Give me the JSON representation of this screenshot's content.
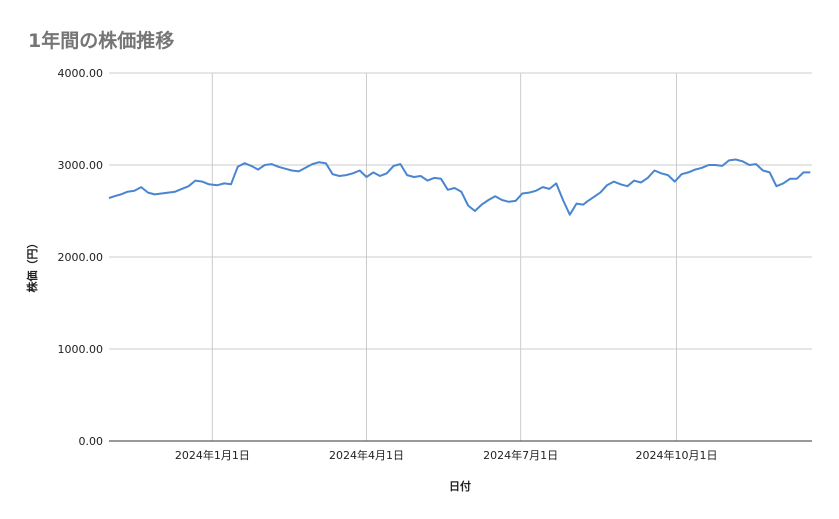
{
  "chart_data": {
    "type": "line",
    "title": "1年間の株価推移",
    "xlabel": "日付",
    "ylabel": "株価（円）",
    "ylim": [
      0,
      4000
    ],
    "yticks": [
      {
        "value": 0,
        "label": "0.00"
      },
      {
        "value": 1000,
        "label": "1000.00"
      },
      {
        "value": 2000,
        "label": "2000.00"
      },
      {
        "value": 3000,
        "label": "3000.00"
      },
      {
        "value": 4000,
        "label": "4000.00"
      }
    ],
    "xlim": [
      "2023-11-01",
      "2024-12-20"
    ],
    "xticks": [
      {
        "date": "2024-01-01",
        "label": "2024年1月1日"
      },
      {
        "date": "2024-04-01",
        "label": "2024年4月1日"
      },
      {
        "date": "2024-07-01",
        "label": "2024年7月1日"
      },
      {
        "date": "2024-10-01",
        "label": "2024年10月1日"
      }
    ],
    "grid": true,
    "legend": "none",
    "color": "#4a86d0",
    "series": [
      {
        "x": [
          "2023-11-01",
          "2023-11-04",
          "2023-11-08",
          "2023-11-12",
          "2023-11-16",
          "2023-11-20",
          "2023-11-24",
          "2023-11-28",
          "2023-12-02",
          "2023-12-06",
          "2023-12-10",
          "2023-12-14",
          "2023-12-18",
          "2023-12-22",
          "2023-12-26",
          "2023-12-30",
          "2024-01-04",
          "2024-01-08",
          "2024-01-12",
          "2024-01-16",
          "2024-01-20",
          "2024-01-24",
          "2024-01-28",
          "2024-02-01",
          "2024-02-05",
          "2024-02-09",
          "2024-02-13",
          "2024-02-17",
          "2024-02-21",
          "2024-02-25",
          "2024-02-29",
          "2024-03-04",
          "2024-03-08",
          "2024-03-12",
          "2024-03-16",
          "2024-03-20",
          "2024-03-24",
          "2024-03-28",
          "2024-04-01",
          "2024-04-05",
          "2024-04-09",
          "2024-04-13",
          "2024-04-17",
          "2024-04-21",
          "2024-04-25",
          "2024-04-29",
          "2024-05-03",
          "2024-05-07",
          "2024-05-11",
          "2024-05-15",
          "2024-05-19",
          "2024-05-23",
          "2024-05-27",
          "2024-05-31",
          "2024-06-04",
          "2024-06-08",
          "2024-06-12",
          "2024-06-16",
          "2024-06-20",
          "2024-06-24",
          "2024-06-28",
          "2024-07-02",
          "2024-07-06",
          "2024-07-10",
          "2024-07-14",
          "2024-07-18",
          "2024-07-22",
          "2024-07-26",
          "2024-07-30",
          "2024-08-03",
          "2024-08-07",
          "2024-08-09",
          "2024-08-13",
          "2024-08-17",
          "2024-08-21",
          "2024-08-25",
          "2024-08-29",
          "2024-09-02",
          "2024-09-06",
          "2024-09-10",
          "2024-09-14",
          "2024-09-18",
          "2024-09-22",
          "2024-09-26",
          "2024-09-30",
          "2024-10-04",
          "2024-10-08",
          "2024-10-12",
          "2024-10-16",
          "2024-10-20",
          "2024-10-24",
          "2024-10-28",
          "2024-11-01",
          "2024-11-05",
          "2024-11-09",
          "2024-11-13",
          "2024-11-17",
          "2024-11-21",
          "2024-11-25",
          "2024-11-29",
          "2024-12-03",
          "2024-12-07",
          "2024-12-11",
          "2024-12-15",
          "2024-12-19"
        ],
        "values": [
          2640,
          2660,
          2680,
          2710,
          2720,
          2760,
          2700,
          2680,
          2690,
          2700,
          2710,
          2740,
          2770,
          2830,
          2820,
          2790,
          2780,
          2800,
          2790,
          2980,
          3020,
          2990,
          2950,
          3000,
          3010,
          2980,
          2960,
          2940,
          2930,
          2970,
          3010,
          3030,
          3020,
          2900,
          2880,
          2890,
          2910,
          2940,
          2870,
          2920,
          2880,
          2910,
          2990,
          3010,
          2890,
          2870,
          2880,
          2830,
          2860,
          2850,
          2730,
          2750,
          2710,
          2560,
          2500,
          2570,
          2620,
          2660,
          2620,
          2600,
          2610,
          2690,
          2700,
          2720,
          2760,
          2740,
          2800,
          2620,
          2460,
          2580,
          2570,
          2600,
          2650,
          2700,
          2780,
          2820,
          2790,
          2770,
          2830,
          2810,
          2860,
          2940,
          2910,
          2890,
          2820,
          2900,
          2920,
          2950,
          2970,
          3000,
          3000,
          2990,
          3050,
          3060,
          3040,
          3000,
          3010,
          2940,
          2920,
          2770,
          2800,
          2850,
          2850,
          2920,
          2920
        ]
      }
    ]
  }
}
